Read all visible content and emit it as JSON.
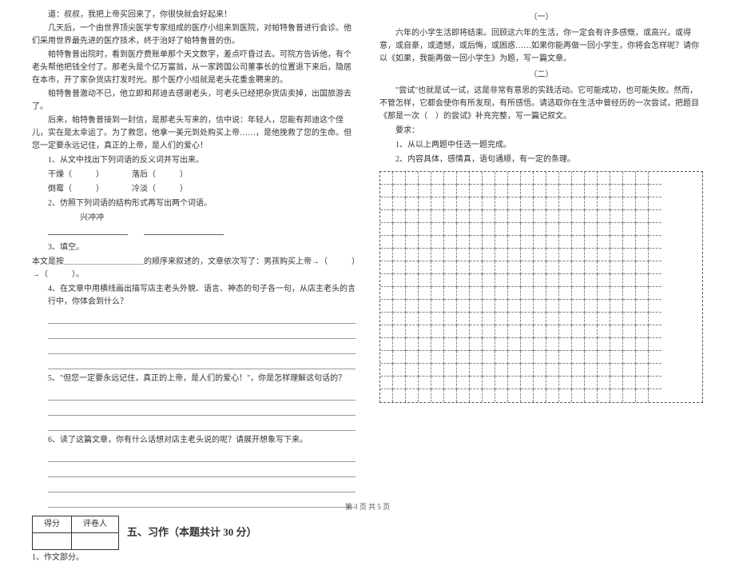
{
  "left": {
    "story": [
      "道：叔叔，我把上帝买回来了，你很快就会好起来！",
      "几天后，一个由世界顶尖医学专家组成的医疗小组来到医院，对帕特鲁普进行会诊。他们采用世界最先进的医疗技术，终于治好了帕特鲁普的伤。",
      "帕特鲁普出院时，看到医疗费账单那个天文数字，差点吓昏过去。可院方告诉他，有个老头帮他把钱全付了。那老头是个亿万富翁，从一家跨国公司董事长的位置退下来后，隐居在本市，开了家杂货店打发时光。那个医疗小组就是老头花重金聘来的。",
      "帕特鲁普激动不已，他立即和邦迪去感谢老头，可老头已经把杂货店卖掉，出国旅游去了。",
      "后来，帕特鲁普接到一封信，是那老头写来的，信中说：年轻人，您能有邦迪这个侄儿，实在是太幸运了。为了救您，他拿一美元到处购买上帝……，是他挽救了您的生命。但您一定要永远记住，真正的上帝，是人们的爱心！"
    ],
    "q1": "1、从文中找出下列词语的反义词并写出来。",
    "q1items": [
      "干燥（　　　）　　　　落后（　　　）",
      "倒霉（　　　）　　　　冷淡（　　　）"
    ],
    "q2": "2、仿照下列词语的结构形式再写出两个词语。",
    "q2word": "兴冲冲",
    "q3": "3、填空。",
    "q3text": "本文是按＿＿＿＿＿＿＿＿＿＿的顺序来叙述的，文章依次写了：男孩购买上帝→（　　　）→（　　　）。",
    "q4": "4、在文章中用横线画出描写店主老头外貌、语言、神态的句子各一句，从店主老头的言行中，你体会到什么？",
    "q5": "5、\"但您一定要永远记住，真正的上帝，是人们的爱心！\"，你是怎样理解这句话的？",
    "q6": "6、读了这篇文章，你有什么话想对店主老头说的呢？请展开想象写下来。",
    "score_h1": "得分",
    "score_h2": "评卷人",
    "section5": "五、习作（本题共计 30 分）",
    "zw": "1、作文部分。"
  },
  "right": {
    "t1": "（一）",
    "p1": "六年的小学生活即将结束。回顾这六年的生活，你一定会有许多感慨，或高兴，或得意，或自豪，或遗憾，或后悔，或困惑……如果你能再做一回小学生，你将会怎样呢？请你以《如果，我能再做一回小学生》为题，写一篇文章。",
    "t2": "（二）",
    "p2": "\"尝试\"也就是试一试，这是非常有意思的实践活动。它可能成功，也可能失败。然而，不管怎样，它都会使你有所发现，有所感悟。请选取你在生活中曾经历的一次尝试，把题目《那是一次（　）的尝试》补充完整，写一篇记叙文。",
    "req": "要求：",
    "r1": "1、从以上两题中任选一题完成。",
    "r2": "2、内容具体，感情真，语句通顺，有一定的条理。",
    "grid": {
      "rows": 18,
      "cols": 22
    }
  },
  "footer": "第 3 页 共 5 页"
}
